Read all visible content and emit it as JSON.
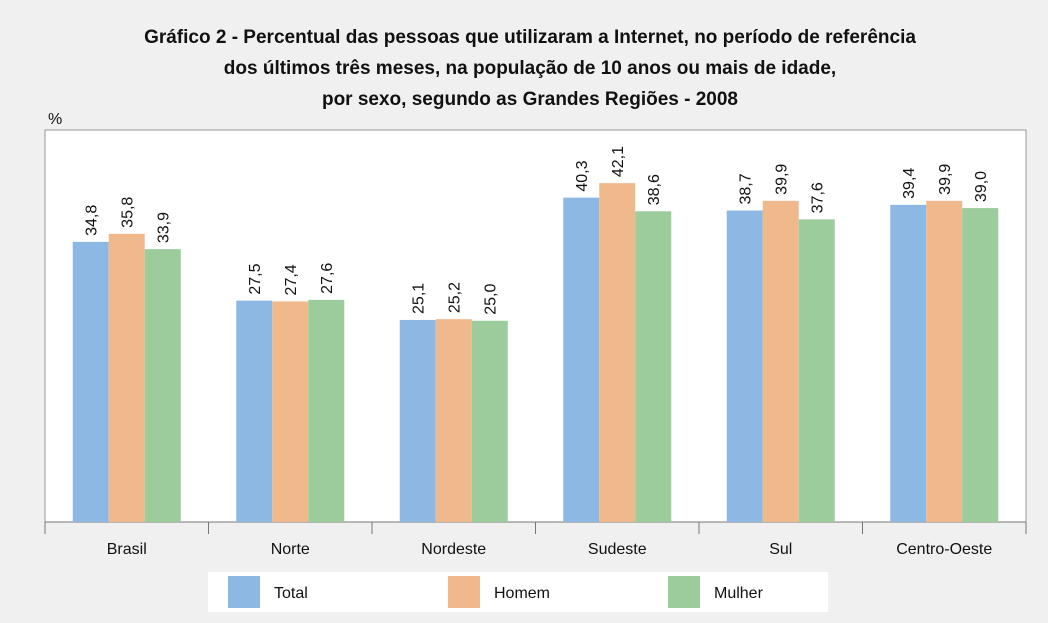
{
  "chart_data": {
    "type": "bar",
    "title": [
      "Gráfico 2 - Percentual das pessoas que utilizaram a Internet, no período de referência",
      "dos últimos três meses, na população de 10 anos ou mais de idade,",
      "por sexo, segundo as Grandes Regiões - 2008"
    ],
    "y_label": "%",
    "categories": [
      "Brasil",
      "Norte",
      "Nordeste",
      "Sudeste",
      "Sul",
      "Centro-Oeste"
    ],
    "series": [
      {
        "name": "Total",
        "color": "#8db8e3",
        "values": [
          34.8,
          27.5,
          25.1,
          40.3,
          38.7,
          39.4
        ],
        "value_labels": [
          "34,8",
          "27,5",
          "25,1",
          "40,3",
          "38,7",
          "39,4"
        ]
      },
      {
        "name": "Homem",
        "color": "#f0b98b",
        "values": [
          35.8,
          27.4,
          25.2,
          42.1,
          39.9,
          39.9
        ],
        "value_labels": [
          "35,8",
          "27,4",
          "25,2",
          "42,1",
          "39,9",
          "39,9"
        ]
      },
      {
        "name": "Mulher",
        "color": "#9ccb9c",
        "values": [
          33.9,
          27.6,
          25.0,
          38.6,
          37.6,
          39.0
        ],
        "value_labels": [
          "33,9",
          "27,6",
          "25,0",
          "38,6",
          "37,6",
          "39,0"
        ]
      }
    ],
    "ylim": [
      0,
      48.7
    ],
    "legend": "bottom"
  }
}
